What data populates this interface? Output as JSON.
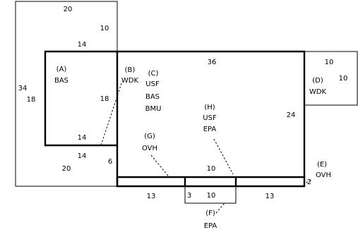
{
  "areas": [
    {
      "key": "A",
      "letter": "(A)",
      "lines": [
        "BAS"
      ]
    },
    {
      "key": "B",
      "letter": "(B)",
      "lines": [
        "WDK"
      ]
    },
    {
      "key": "C",
      "letter": "(C)",
      "lines": [
        "USF",
        "BAS",
        "BMU"
      ]
    },
    {
      "key": "D",
      "letter": "(D)",
      "lines": [
        "WDK"
      ]
    },
    {
      "key": "E",
      "letter": "(E)",
      "lines": [
        "OVH"
      ]
    },
    {
      "key": "F",
      "letter": "(F)",
      "lines": [
        "EPA"
      ]
    },
    {
      "key": "G",
      "letter": "(G)",
      "lines": [
        "OVH"
      ]
    },
    {
      "key": "H",
      "letter": "(H)",
      "lines": [
        "USF",
        "EPA"
      ]
    }
  ],
  "dimensions": {
    "outer_top": "20",
    "outer_right_upper": "10",
    "outer_left": "34",
    "outer_bottom": "20",
    "a_top": "14",
    "a_left": "18",
    "a_right": "18",
    "a_bottom": "14",
    "notch_bottom": "14",
    "notch_right": "6",
    "main_top": "36",
    "main_right": "24",
    "main_bottom": "10",
    "porch_left": "13",
    "porch_right": "13",
    "porch_depth": "2",
    "step_left": "3",
    "step_width": "10",
    "d_top": "10",
    "d_right": "10"
  }
}
